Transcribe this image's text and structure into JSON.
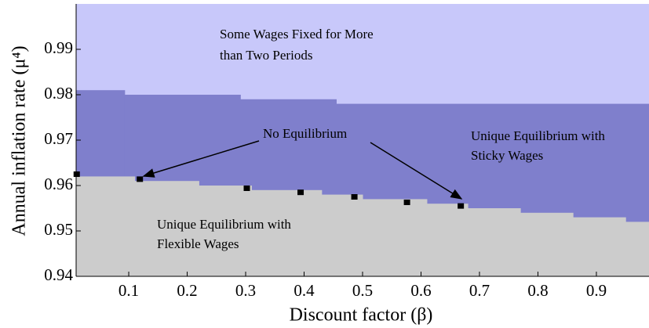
{
  "chart_data": {
    "type": "region",
    "xlabel": "Discount factor (β)",
    "ylabel": "Annual inflation rate (μ⁴)",
    "xlim": [
      0.01,
      0.99
    ],
    "ylim": [
      0.94,
      1.0
    ],
    "xticks": [
      0.1,
      0.2,
      0.3,
      0.4,
      0.5,
      0.6,
      0.7,
      0.8,
      0.9
    ],
    "yticks": [
      0.94,
      0.95,
      0.96,
      0.97,
      0.98,
      0.99
    ],
    "regions": [
      {
        "lines": [
          "Some Wages Fixed for More",
          "than Two Periods"
        ],
        "color": "#c8c8fa"
      },
      {
        "lines": [
          "Unique Equilibrium with",
          "Sticky Wages"
        ],
        "color": "#7f7fcc"
      },
      {
        "lines": [
          "Unique Equilibrium with",
          "Flexible Wages"
        ],
        "color": "#cccccc"
      }
    ],
    "upper_boundary": {
      "edges": [
        0.01,
        0.093,
        0.291,
        0.455,
        0.99
      ],
      "values": [
        0.981,
        0.98,
        0.979,
        0.978
      ]
    },
    "lower_boundary": {
      "edges": [
        0.01,
        0.11,
        0.22,
        0.31,
        0.43,
        0.5,
        0.61,
        0.68,
        0.77,
        0.86,
        0.95,
        0.99
      ],
      "values": [
        0.962,
        0.961,
        0.96,
        0.959,
        0.958,
        0.957,
        0.956,
        0.955,
        0.954,
        0.953,
        0.952
      ]
    },
    "points": {
      "x": [
        0.011,
        0.119,
        0.302,
        0.394,
        0.486,
        0.576,
        0.668
      ],
      "y": [
        0.9625,
        0.9614,
        0.9594,
        0.9585,
        0.9575,
        0.9563,
        0.9555
      ],
      "color": "#000000"
    },
    "annotation": "No Equilibrium"
  }
}
